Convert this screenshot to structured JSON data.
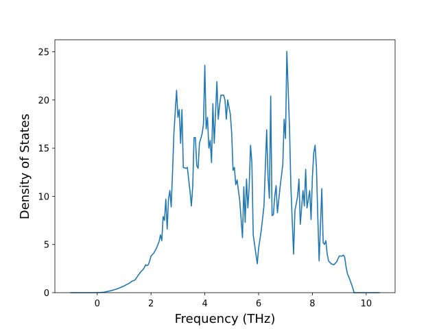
{
  "chart_data": {
    "type": "line",
    "xlabel": "Frequency (THz)",
    "ylabel": "Density of States",
    "color": "#1f77b4",
    "x": [
      -1.0,
      -0.5,
      0,
      0.25,
      0.5,
      0.75,
      1.0,
      1.2,
      1.3,
      1.4,
      1.5,
      1.6,
      1.7,
      1.75,
      1.8,
      1.85,
      1.9,
      1.95,
      2.0,
      2.1,
      2.2,
      2.3,
      2.35,
      2.4,
      2.45,
      2.5,
      2.55,
      2.6,
      2.65,
      2.7,
      2.75,
      2.8,
      2.85,
      2.95,
      3.0,
      3.05,
      3.1,
      3.15,
      3.2,
      3.3,
      3.35,
      3.45,
      3.5,
      3.55,
      3.6,
      3.65,
      3.7,
      3.75,
      3.8,
      3.9,
      3.95,
      4.0,
      4.05,
      4.1,
      4.15,
      4.2,
      4.25,
      4.3,
      4.35,
      4.45,
      4.5,
      4.55,
      4.6,
      4.7,
      4.75,
      4.8,
      4.85,
      4.95,
      5.0,
      5.05,
      5.1,
      5.15,
      5.2,
      5.3,
      5.4,
      5.45,
      5.5,
      5.55,
      5.6,
      5.65,
      5.7,
      5.75,
      5.8,
      5.9,
      5.95,
      6.0,
      6.1,
      6.2,
      6.25,
      6.3,
      6.35,
      6.4,
      6.45,
      6.5,
      6.55,
      6.6,
      6.65,
      6.7,
      6.8,
      6.9,
      6.95,
      7.0,
      7.05,
      7.15,
      7.2,
      7.3,
      7.35,
      7.45,
      7.5,
      7.55,
      7.65,
      7.7,
      7.75,
      7.8,
      7.9,
      7.95,
      8.0,
      8.05,
      8.1,
      8.15,
      8.2,
      8.25,
      8.3,
      8.35,
      8.4,
      8.45,
      8.5,
      8.55,
      8.6,
      8.7,
      8.8,
      8.9,
      9.0,
      9.1,
      9.15,
      9.2,
      9.25,
      9.3,
      9.4,
      9.5,
      9.55,
      10.0,
      10.5
    ],
    "values": [
      0,
      0,
      0,
      0.05,
      0.2,
      0.4,
      0.7,
      1.0,
      1.2,
      1.3,
      1.7,
      2.1,
      2.4,
      2.6,
      2.9,
      2.8,
      2.9,
      3.3,
      3.8,
      4.1,
      4.6,
      5.3,
      6.0,
      5.4,
      7.9,
      7.5,
      9.7,
      6.6,
      9.7,
      10.6,
      8.9,
      12.5,
      16.5,
      21.0,
      18.2,
      19.0,
      15.5,
      19.0,
      13.0,
      12.9,
      13.0,
      10.5,
      9.0,
      11.0,
      16.1,
      16.1,
      13.2,
      12.9,
      15.5,
      16.5,
      17.5,
      23.6,
      17.0,
      18.2,
      15.0,
      15.8,
      13.5,
      19.6,
      15.5,
      21.9,
      18.0,
      19.5,
      20.5,
      20.5,
      20.0,
      18.0,
      20.0,
      18.5,
      16.5,
      12.7,
      13.0,
      11.2,
      11.7,
      9.5,
      5.7,
      11.0,
      7.3,
      11.8,
      8.8,
      11.0,
      15.3,
      13.5,
      6.0,
      4.0,
      3.0,
      4.6,
      6.5,
      9.0,
      13.0,
      16.9,
      12.0,
      9.8,
      20.4,
      8.0,
      8.1,
      10.0,
      11.1,
      8.3,
      11.0,
      13.3,
      18.0,
      16.0,
      25.05,
      17.0,
      11.0,
      4.0,
      8.5,
      10.0,
      11.8,
      7.1,
      10.6,
      9.0,
      12.8,
      8.8,
      10.6,
      7.6,
      12.0,
      14.5,
      15.3,
      13.0,
      8.0,
      3.3,
      7.0,
      10.8,
      5.2,
      5.0,
      5.4,
      4.0,
      3.3,
      3.0,
      2.9,
      3.2,
      3.8,
      3.8,
      3.9,
      3.7,
      2.7,
      2.0,
      1.3,
      0.5,
      0,
      0,
      0
    ],
    "xlim": [
      -1.575,
      11.075
    ],
    "ylim": [
      0,
      26.25
    ],
    "xticks": [
      0,
      2,
      4,
      6,
      8,
      10
    ],
    "yticks": [
      0,
      5,
      10,
      15,
      20,
      25
    ]
  }
}
